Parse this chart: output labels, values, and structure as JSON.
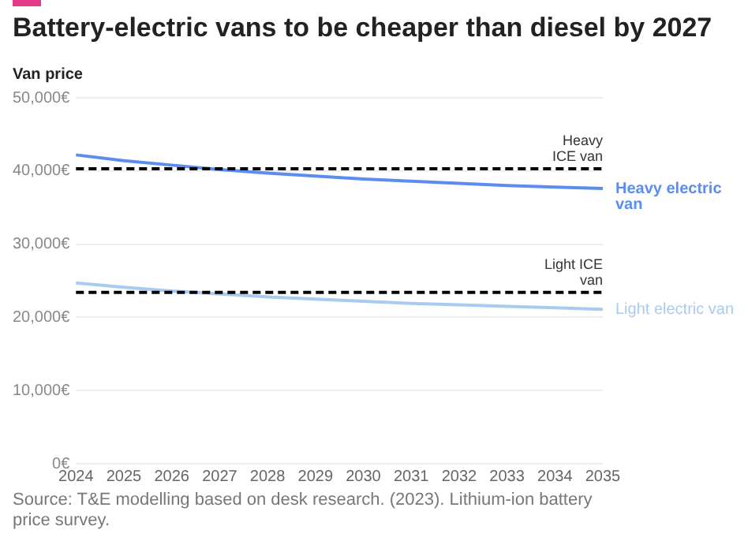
{
  "chart_data": {
    "type": "line",
    "title": "Battery-electric vans to be cheaper than diesel by 2027",
    "ylabel": "Van price",
    "categories": [
      "2024",
      "2025",
      "2026",
      "2027",
      "2028",
      "2029",
      "2030",
      "2031",
      "2032",
      "2033",
      "2034",
      "2035"
    ],
    "series": [
      {
        "name": "Heavy electric van",
        "color": "#5b8def",
        "values": [
          42200,
          41400,
          40800,
          40200,
          39700,
          39300,
          38900,
          38600,
          38300,
          38000,
          37800,
          37600
        ]
      },
      {
        "name": "Light electric van",
        "color": "#a9cbef",
        "values": [
          24700,
          24100,
          23600,
          23200,
          22800,
          22500,
          22200,
          21900,
          21700,
          21500,
          21300,
          21100
        ]
      }
    ],
    "ylim": [
      0,
      50000
    ],
    "yticks": [
      {
        "value": 0,
        "label": "0€"
      },
      {
        "value": 10000,
        "label": "10,000€"
      },
      {
        "value": 20000,
        "label": "20,000€"
      },
      {
        "value": 30000,
        "label": "30,000€"
      },
      {
        "value": 40000,
        "label": "40,000€"
      },
      {
        "value": 50000,
        "label": "50,000€"
      }
    ],
    "ref_lines": [
      {
        "axis": "y",
        "value": 40300,
        "label": "Heavy ICE van",
        "color": "#000000",
        "line_style": "dashed"
      },
      {
        "axis": "y",
        "value": 23400,
        "label": "Light ICE van",
        "color": "#000000",
        "line_style": "dashed"
      }
    ],
    "grid": "y",
    "legend": false,
    "marker": "none",
    "line_style": "solid",
    "annotations": [
      "Source: T&E modelling based on desk research. (2023). Lithium-ion battery price survey."
    ]
  }
}
